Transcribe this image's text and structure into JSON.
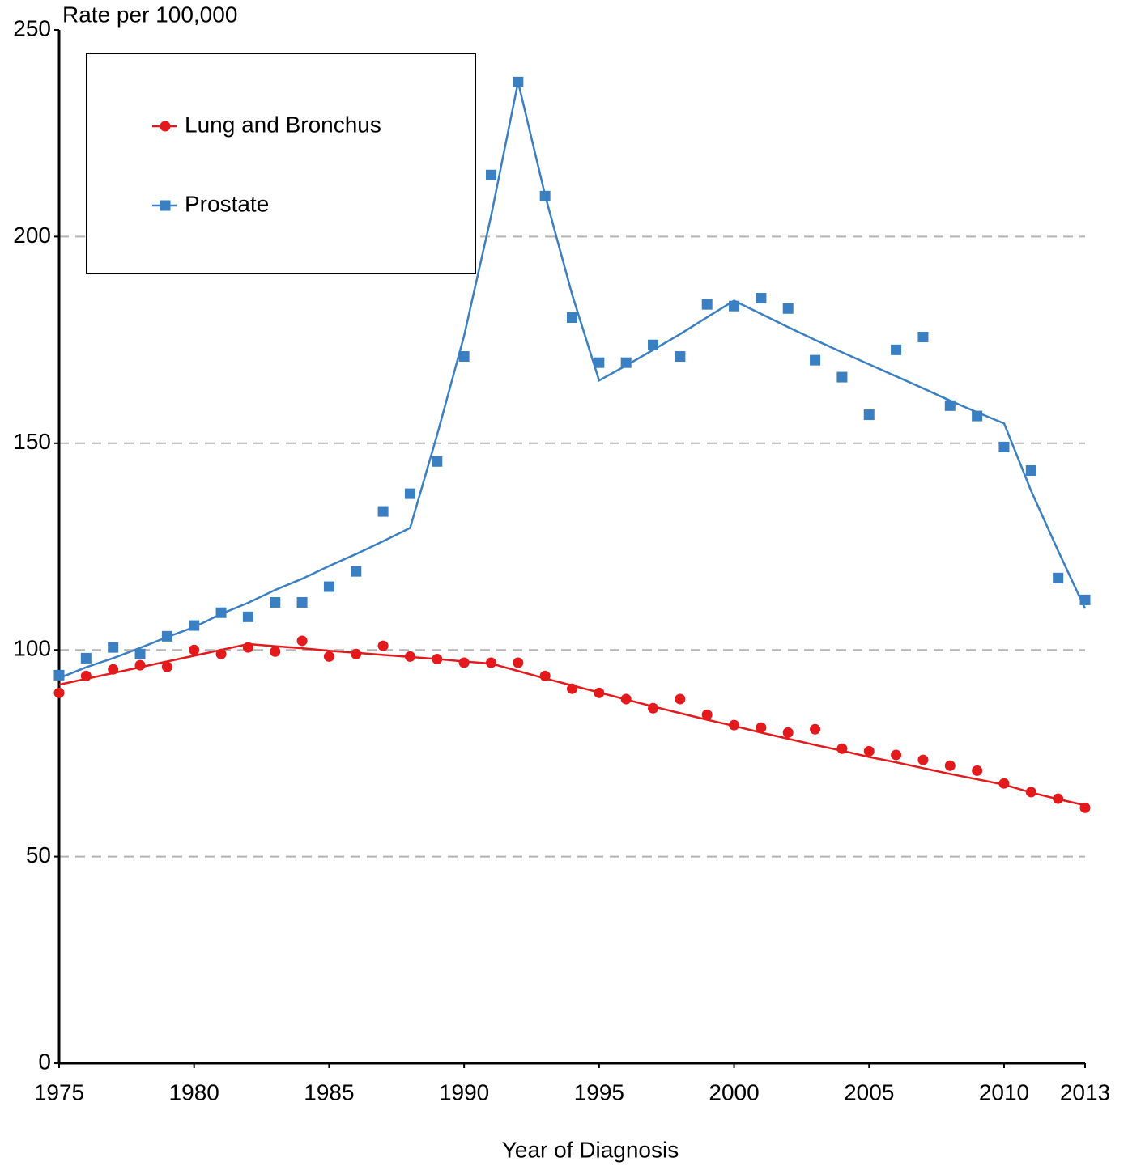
{
  "chart_data": {
    "type": "line",
    "y_label": "Rate per 100,000",
    "x_label": "Year of Diagnosis",
    "x": [
      1975,
      1976,
      1977,
      1978,
      1979,
      1980,
      1981,
      1982,
      1983,
      1984,
      1985,
      1986,
      1987,
      1988,
      1989,
      1990,
      1991,
      1992,
      1993,
      1994,
      1995,
      1996,
      1997,
      1998,
      1999,
      2000,
      2001,
      2002,
      2003,
      2004,
      2005,
      2006,
      2007,
      2008,
      2009,
      2010,
      2011,
      2012,
      2013
    ],
    "xlim": [
      1975,
      2013
    ],
    "xticks": [
      1975,
      1980,
      1985,
      1990,
      1995,
      2000,
      2005,
      2010,
      2013
    ],
    "ylim": [
      0,
      250
    ],
    "yticks": [
      0,
      50,
      100,
      150,
      200,
      250
    ],
    "grid": true,
    "legend": "upper left",
    "series": [
      {
        "name": "Lung and Bronchus",
        "color": "#e3191c",
        "marker": "circle",
        "values": [
          89.6,
          93.7,
          95.3,
          96.3,
          95.9,
          100.0,
          99.0,
          100.6,
          99.6,
          102.2,
          98.4,
          99.0,
          101.0,
          98.4,
          97.8,
          96.9,
          96.9,
          96.9,
          93.7,
          90.6,
          89.6,
          88.1,
          85.9,
          88.1,
          84.3,
          81.8,
          81.2,
          80.0,
          80.8,
          76.1,
          75.5,
          74.6,
          73.4,
          72.0,
          70.8,
          67.7,
          65.6,
          64.0,
          61.8
        ],
        "fit": [
          91.6,
          93.0,
          94.4,
          95.8,
          97.2,
          98.6,
          100.0,
          101.4,
          100.9,
          100.4,
          99.8,
          99.3,
          98.8,
          98.3,
          97.8,
          97.2,
          96.7,
          94.9,
          93.1,
          91.4,
          89.7,
          88.0,
          86.3,
          84.7,
          83.1,
          81.6,
          80.0,
          78.5,
          77.0,
          75.6,
          74.1,
          72.8,
          71.4,
          70.0,
          68.7,
          67.4,
          65.5,
          63.9,
          62.4
        ]
      },
      {
        "name": "Prostate",
        "color": "#3a7fc1",
        "marker": "square",
        "values": [
          93.9,
          98.0,
          100.6,
          99.0,
          103.3,
          105.9,
          109.0,
          108.0,
          111.5,
          111.5,
          115.3,
          119.0,
          133.5,
          137.8,
          145.6,
          171.0,
          214.9,
          237.4,
          209.8,
          180.4,
          169.5,
          169.5,
          173.8,
          171.0,
          183.6,
          183.2,
          185.1,
          182.6,
          170.1,
          166.0,
          156.9,
          172.6,
          175.7,
          159.1,
          156.6,
          149.1,
          143.4,
          117.4,
          112.1
        ],
        "fit": [
          93.2,
          95.8,
          98.0,
          100.5,
          103.1,
          105.5,
          108.7,
          111.4,
          114.5,
          117.2,
          120.3,
          123.2,
          126.3,
          129.5,
          152.0,
          176.0,
          205.0,
          237.4,
          210.0,
          186.0,
          165.2,
          168.8,
          172.6,
          176.4,
          180.5,
          184.5,
          181.3,
          178.1,
          175.0,
          172.0,
          169.1,
          166.2,
          163.3,
          160.3,
          157.5,
          154.8,
          138.5,
          124.0,
          110.0
        ]
      }
    ]
  }
}
